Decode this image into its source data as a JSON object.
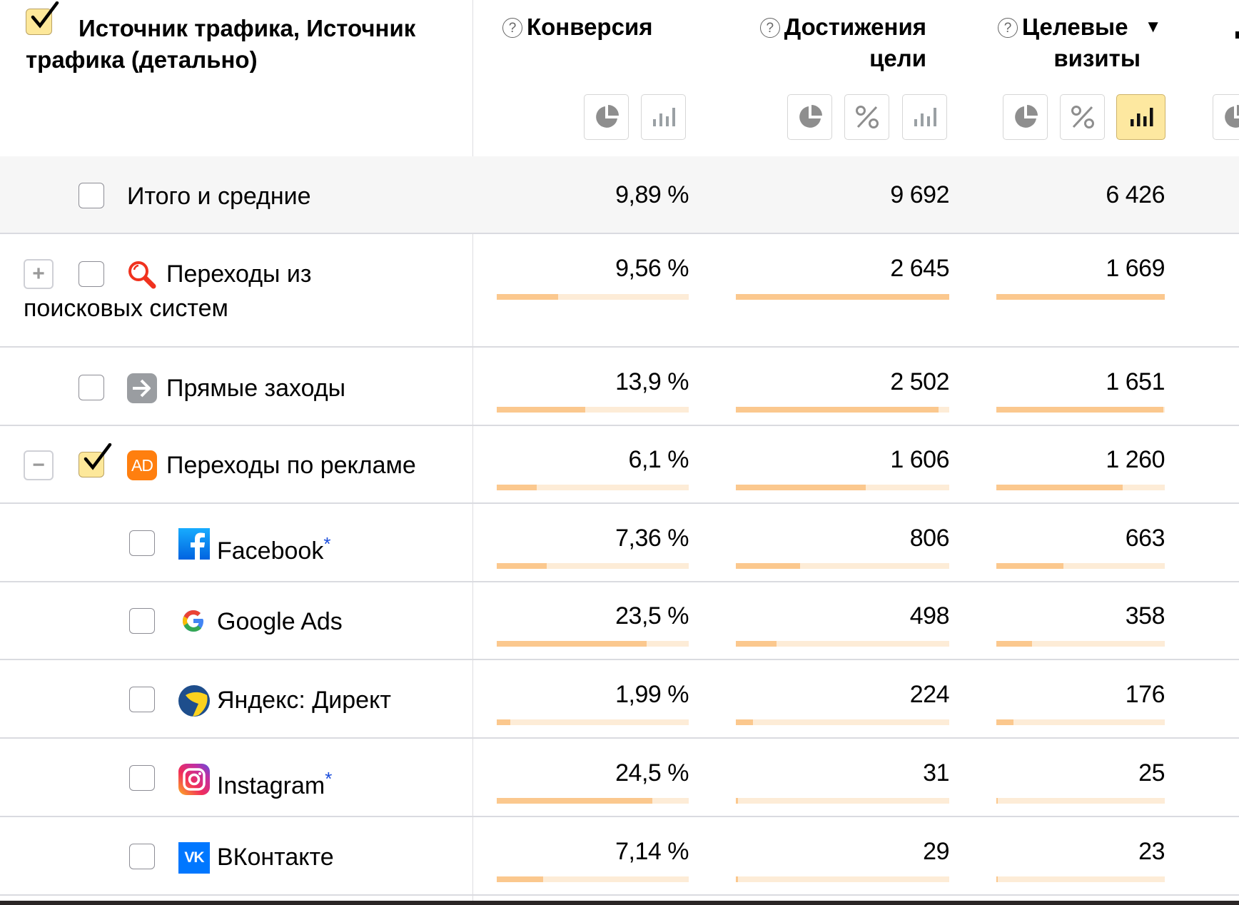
{
  "header": {
    "dimension_title_line1": "Источник трафика, Источник",
    "dimension_title_line2": "трафика (детально)",
    "select_all_checked": true,
    "columns": [
      {
        "key": "conversion",
        "line1": "Конверсия",
        "line2": "",
        "help_icon": "question-circle-icon",
        "buttons": [
          "pie-chart-icon",
          "bar-chart-icon"
        ],
        "active_button": null
      },
      {
        "key": "goal_reaches",
        "line1": "Достижения",
        "line2": "цели",
        "help_icon": "question-circle-icon",
        "buttons": [
          "pie-chart-icon",
          "percent-icon",
          "bar-chart-icon"
        ],
        "active_button": null
      },
      {
        "key": "target_visits",
        "line1": "Целевые",
        "line2": "визиты",
        "help_icon": "question-circle-icon",
        "sort_indicator": "▼",
        "buttons": [
          "pie-chart-icon",
          "percent-icon",
          "bar-chart-icon"
        ],
        "active_button": "bar-chart-icon"
      }
    ]
  },
  "totals": {
    "label": "Итого и средние",
    "conversion": "9,89 %",
    "goal_reaches": "9 692",
    "target_visits": "6 426"
  },
  "rows": [
    {
      "label_line1": "Переходы из",
      "label_line2": "поисковых систем",
      "icon": "search-icon",
      "expander": "+",
      "checked": false,
      "level": 0,
      "conversion": "9,56 %",
      "goal_reaches": "2 645",
      "target_visits": "1 669",
      "bars": [
        0.32,
        1.0,
        1.0
      ]
    },
    {
      "label": "Прямые заходы",
      "icon": "direct-arrow-icon",
      "checked": false,
      "level": 0,
      "conversion": "13,9 %",
      "goal_reaches": "2 502",
      "target_visits": "1 651",
      "bars": [
        0.46,
        0.95,
        0.99
      ]
    },
    {
      "label": "Переходы по рекламе",
      "icon": "ad-icon",
      "icon_text": "AD",
      "expander": "−",
      "checked": true,
      "level": 0,
      "conversion": "6,1 %",
      "goal_reaches": "1 606",
      "target_visits": "1 260",
      "bars": [
        0.21,
        0.61,
        0.75
      ]
    },
    {
      "label": "Facebook",
      "asterisk": "*",
      "icon": "facebook-icon",
      "checked": false,
      "level": 1,
      "conversion": "7,36 %",
      "goal_reaches": "806",
      "target_visits": "663",
      "bars": [
        0.26,
        0.3,
        0.4
      ]
    },
    {
      "label": "Google Ads",
      "icon": "google-icon",
      "checked": false,
      "level": 1,
      "conversion": "23,5 %",
      "goal_reaches": "498",
      "target_visits": "358",
      "bars": [
        0.78,
        0.19,
        0.21
      ]
    },
    {
      "label": "Яндекс: Директ",
      "icon": "yandex-direct-icon",
      "checked": false,
      "level": 1,
      "conversion": "1,99 %",
      "goal_reaches": "224",
      "target_visits": "176",
      "bars": [
        0.07,
        0.08,
        0.1
      ]
    },
    {
      "label": "Instagram",
      "asterisk": "*",
      "icon": "instagram-icon",
      "checked": false,
      "level": 1,
      "conversion": "24,5 %",
      "goal_reaches": "31",
      "target_visits": "25",
      "bars": [
        0.81,
        0.01,
        0.01
      ]
    },
    {
      "label": "ВКонтакте",
      "icon": "vk-icon",
      "icon_text": "VK",
      "checked": false,
      "level": 1,
      "conversion": "7,14 %",
      "goal_reaches": "29",
      "target_visits": "23",
      "bars": [
        0.24,
        0.01,
        0.01
      ]
    }
  ],
  "colors": {
    "bar_fill": "#fbc88e",
    "bar_track": "#fdecd7",
    "active_toggle": "#fde8a0",
    "checkbox_checked": "#fde89a",
    "ad_badge": "#ff7f0f",
    "search_icon": "#f0321e",
    "facebook": "#1877f2",
    "vk": "#0077ff"
  }
}
